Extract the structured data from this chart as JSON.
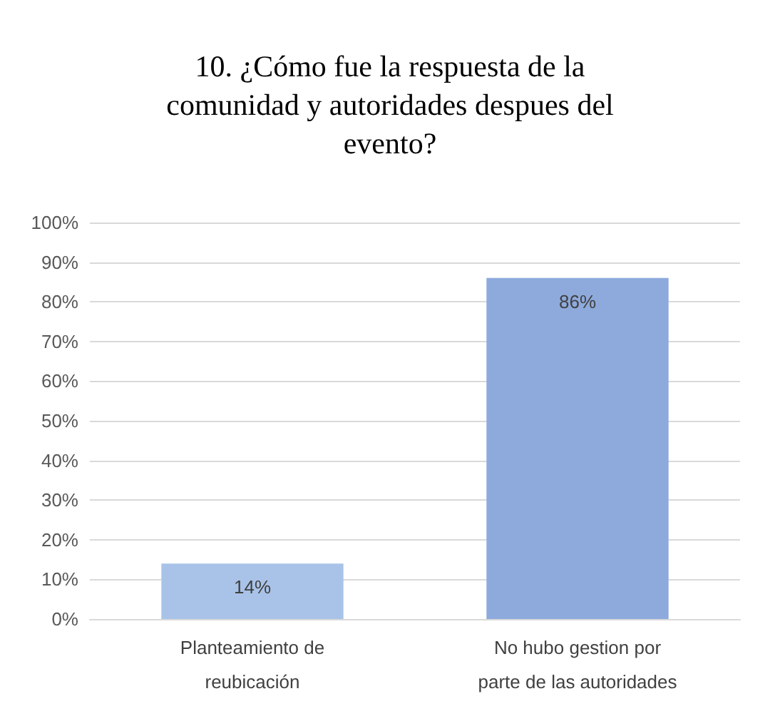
{
  "chart_data": {
    "type": "bar",
    "title": "10. ¿Cómo fue la respuesta de la comunidad y autoridades despues del evento?",
    "categories": [
      "Planteamiento de reubicación",
      "No hubo gestion por parte de las autoridades"
    ],
    "values": [
      14,
      86
    ],
    "colors": [
      "#a9c3e8",
      "#8eaadc"
    ],
    "ylim": [
      0,
      100
    ],
    "yticks": [
      {
        "value": 0,
        "label": "0%"
      },
      {
        "value": 10,
        "label": "10%"
      },
      {
        "value": 20,
        "label": "20%"
      },
      {
        "value": 30,
        "label": "30%"
      },
      {
        "value": 40,
        "label": "40%"
      },
      {
        "value": 50,
        "label": "50%"
      },
      {
        "value": 60,
        "label": "60%"
      },
      {
        "value": 70,
        "label": "70%"
      },
      {
        "value": 80,
        "label": "80%"
      },
      {
        "value": 90,
        "label": "90%"
      },
      {
        "value": 100,
        "label": "100%"
      }
    ],
    "value_labels": [
      "14%",
      "86%"
    ],
    "grid": "y"
  }
}
